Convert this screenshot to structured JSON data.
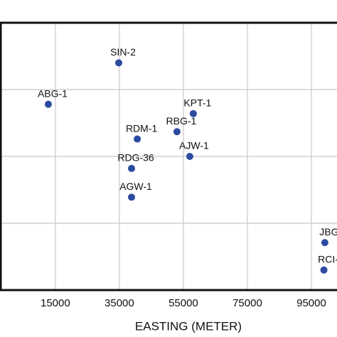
{
  "chart_data": {
    "type": "scatter",
    "x_label": "EASTING (METER)",
    "x": [
      34800,
      12800,
      58100,
      53000,
      40600,
      57000,
      38800,
      38800,
      99200,
      98900
    ],
    "values": [
      3.4,
      2.78,
      2.64,
      2.37,
      2.26,
      2.0,
      1.82,
      1.39,
      0.71,
      0.3
    ],
    "point_labels": [
      "SIN-2",
      "ABG-1",
      "KPT-1",
      "RBG-1",
      "RDM-1",
      "AJW-1",
      "RDG-36",
      "AGW-1",
      "JBG",
      "RCI-"
    ],
    "color": "#2b4aa0",
    "xlim": [
      -2300,
      103000
    ],
    "xticks": [
      15000,
      35000,
      55000,
      75000,
      95000
    ],
    "ylim": [
      0,
      4
    ],
    "yticks": [
      1,
      2,
      3
    ],
    "grid": true
  }
}
